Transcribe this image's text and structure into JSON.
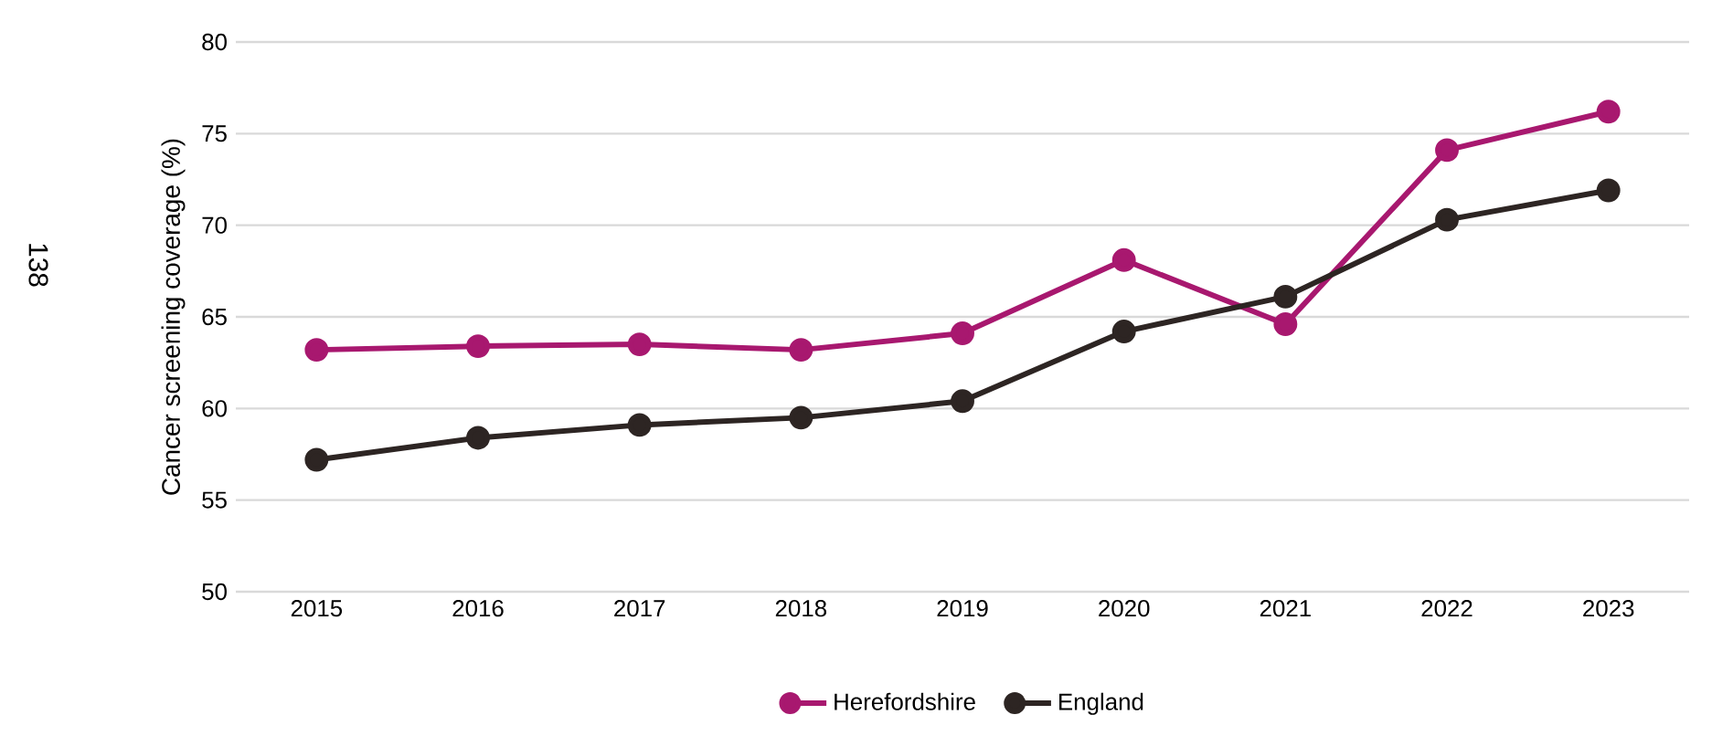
{
  "chart_data": {
    "type": "line",
    "ylabel": "Cancer screening coverage (%)",
    "categories": [
      "2015",
      "2016",
      "2017",
      "2018",
      "2019",
      "2020",
      "2021",
      "2022",
      "2023"
    ],
    "series": [
      {
        "name": "Herefordshire",
        "color": "#a8186f",
        "values": [
          63.2,
          63.4,
          63.5,
          63.2,
          64.1,
          68.1,
          64.6,
          74.1,
          76.2
        ]
      },
      {
        "name": "England",
        "color": "#2d2523",
        "values": [
          57.2,
          58.4,
          59.1,
          59.5,
          60.4,
          64.2,
          66.1,
          70.3,
          71.9
        ]
      }
    ],
    "ylim": [
      50,
      80
    ],
    "yticks": [
      50,
      55,
      60,
      65,
      70,
      75,
      80
    ],
    "grid": "y",
    "legend": "bottom",
    "marker": "circle",
    "line_style": "solid",
    "annotations": [
      "138"
    ]
  }
}
